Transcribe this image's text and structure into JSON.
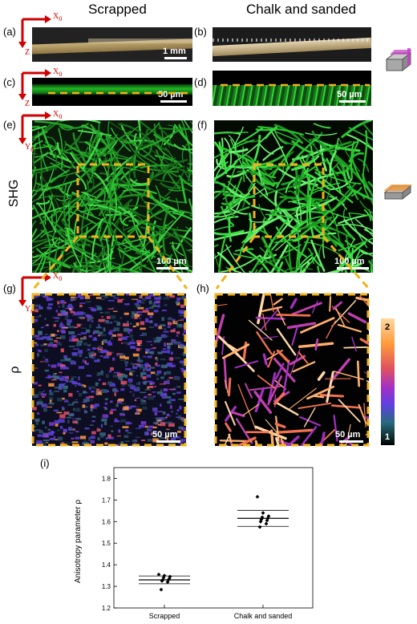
{
  "columns": {
    "left": "Scrapped",
    "right": "Chalk and sanded"
  },
  "row_labels": {
    "shg": "SHG",
    "rho": "ρ"
  },
  "panels": {
    "a": "(a)",
    "b": "(b)",
    "c": "(c)",
    "d": "(d)",
    "e": "(e)",
    "f": "(f)",
    "g": "(g)",
    "h": "(h)",
    "i": "(i)"
  },
  "axes": {
    "x0": "X",
    "x0_sub": "0",
    "z": "Z",
    "y0": "Y",
    "y0_sub": "0"
  },
  "scalebars": {
    "a": "1 mm",
    "c": "50 µm",
    "d": "50 µm",
    "e": "100 µm",
    "f": "100 µm",
    "g": "50 µm",
    "h": "50 µm"
  },
  "colorbar": {
    "max": "2",
    "min": "1"
  },
  "colors": {
    "shg_green": "#22c42a",
    "dash_yellow": "#f2b21a",
    "axis_red": "#d00000"
  },
  "chart_data": {
    "type": "scatter",
    "categories": [
      "Scrapped",
      "Chalk and sanded"
    ],
    "ylabel": "Anisotropy parameter ρ",
    "xlabel": "",
    "ylim": [
      1.2,
      1.85
    ],
    "yticks": [
      "1.2",
      "1.3",
      "1.4",
      "1.5",
      "1.6",
      "1.7",
      "1.8"
    ],
    "series": [
      {
        "category": "Scrapped",
        "values": [
          1.355,
          1.35,
          1.345,
          1.34,
          1.335,
          1.33,
          1.33,
          1.325,
          1.32,
          1.285
        ],
        "mean": 1.33,
        "upper": 1.348,
        "lower": 1.312
      },
      {
        "category": "Chalk and sanded",
        "values": [
          1.715,
          1.64,
          1.625,
          1.62,
          1.615,
          1.61,
          1.605,
          1.6,
          1.59,
          1.575
        ],
        "mean": 1.615,
        "upper": 1.652,
        "lower": 1.578
      }
    ]
  }
}
